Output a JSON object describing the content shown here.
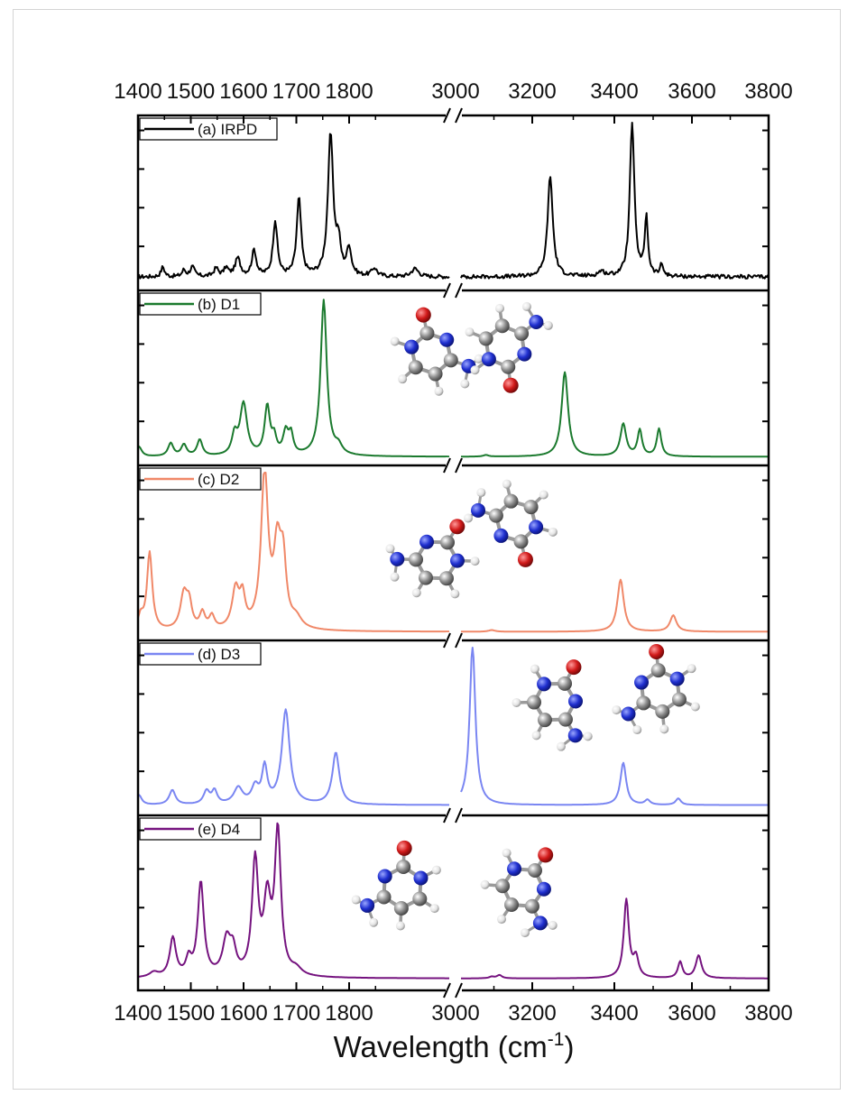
{
  "chart_data": {
    "type": "line",
    "xlabel": "Wavelength (cm",
    "xlabel_sup": "-1",
    "xlabel_close": ")",
    "axis_break": true,
    "x_ranges": [
      [
        1400,
        1990
      ],
      [
        3000,
        3800
      ]
    ],
    "top_ticks": [
      "1400",
      "1500",
      "1600",
      "1700",
      "1800",
      "3000",
      "3200",
      "3400",
      "3600",
      "3800"
    ],
    "bottom_ticks": [
      "1400",
      "1500",
      "1600",
      "1700",
      "1800",
      "3000",
      "3200",
      "3400",
      "3600",
      "3800"
    ],
    "y_ticks_shown": false,
    "panels": [
      {
        "label": "(a) IRPD",
        "color": "#000000",
        "baseline": 0.05,
        "noise": 0.012,
        "peaks": [
          [
            1447,
            0.06,
            4
          ],
          [
            1487,
            0.04,
            4
          ],
          [
            1503,
            0.06,
            5
          ],
          [
            1548,
            0.05,
            5
          ],
          [
            1567,
            0.05,
            5
          ],
          [
            1589,
            0.11,
            6
          ],
          [
            1620,
            0.16,
            5
          ],
          [
            1660,
            0.34,
            5
          ],
          [
            1705,
            0.48,
            5
          ],
          [
            1765,
            0.87,
            6
          ],
          [
            1780,
            0.18,
            5
          ],
          [
            1800,
            0.17,
            5
          ],
          [
            1848,
            0.05,
            6
          ],
          [
            1925,
            0.05,
            8
          ],
          [
            3232,
            0.62,
            8
          ],
          [
            3445,
            0.95,
            7
          ],
          [
            3482,
            0.36,
            5
          ],
          [
            3522,
            0.07,
            5
          ],
          [
            3365,
            0.03,
            10
          ]
        ]
      },
      {
        "label": "(b) D1",
        "color": "#1b7a2e",
        "baseline": 0.02,
        "noise": 0,
        "peaks": [
          [
            1402,
            0.06,
            6
          ],
          [
            1462,
            0.08,
            6
          ],
          [
            1487,
            0.07,
            6
          ],
          [
            1517,
            0.1,
            6
          ],
          [
            1583,
            0.12,
            6
          ],
          [
            1600,
            0.32,
            8
          ],
          [
            1645,
            0.3,
            6
          ],
          [
            1658,
            0.1,
            5
          ],
          [
            1680,
            0.14,
            6
          ],
          [
            1690,
            0.12,
            5
          ],
          [
            1752,
            0.96,
            7
          ],
          [
            1780,
            0.05,
            8
          ],
          [
            3270,
            0.52,
            10
          ],
          [
            3422,
            0.2,
            9
          ],
          [
            3465,
            0.16,
            7
          ],
          [
            3515,
            0.17,
            7
          ],
          [
            3065,
            0.01,
            8
          ]
        ]
      },
      {
        "label": "(c) D2",
        "color": "#f08868",
        "baseline": 0.02,
        "noise": 0,
        "peaks": [
          [
            1405,
            0.08,
            6
          ],
          [
            1422,
            0.48,
            6
          ],
          [
            1487,
            0.22,
            8
          ],
          [
            1497,
            0.14,
            6
          ],
          [
            1522,
            0.1,
            6
          ],
          [
            1540,
            0.08,
            6
          ],
          [
            1585,
            0.24,
            8
          ],
          [
            1598,
            0.18,
            6
          ],
          [
            1640,
            0.96,
            8
          ],
          [
            1664,
            0.46,
            8
          ],
          [
            1675,
            0.38,
            7
          ],
          [
            1700,
            0.06,
            12
          ],
          [
            3415,
            0.32,
            10
          ],
          [
            3552,
            0.1,
            10
          ],
          [
            3080,
            0.01,
            10
          ]
        ]
      },
      {
        "label": "(d) D3",
        "color": "#7a86f2",
        "baseline": 0.03,
        "noise": 0,
        "peaks": [
          [
            1402,
            0.06,
            6
          ],
          [
            1465,
            0.09,
            7
          ],
          [
            1530,
            0.08,
            7
          ],
          [
            1545,
            0.08,
            6
          ],
          [
            1590,
            0.1,
            10
          ],
          [
            1622,
            0.1,
            8
          ],
          [
            1640,
            0.22,
            6
          ],
          [
            1680,
            0.58,
            9
          ],
          [
            1775,
            0.32,
            8
          ],
          [
            3030,
            0.98,
            9
          ],
          [
            3422,
            0.26,
            9
          ],
          [
            3485,
            0.03,
            8
          ],
          [
            3565,
            0.04,
            8
          ]
        ]
      },
      {
        "label": "(e) D4",
        "color": "#75137f",
        "baseline": 0.04,
        "noise": 0,
        "peaks": [
          [
            1430,
            0.03,
            10
          ],
          [
            1466,
            0.24,
            7
          ],
          [
            1496,
            0.1,
            6
          ],
          [
            1519,
            0.58,
            7
          ],
          [
            1568,
            0.22,
            9
          ],
          [
            1580,
            0.14,
            7
          ],
          [
            1622,
            0.7,
            7
          ],
          [
            1645,
            0.44,
            8
          ],
          [
            1665,
            0.88,
            7
          ],
          [
            1700,
            0.04,
            12
          ],
          [
            3080,
            0.01,
            8
          ],
          [
            3100,
            0.02,
            8
          ],
          [
            3430,
            0.48,
            8
          ],
          [
            3455,
            0.12,
            8
          ],
          [
            3570,
            0.1,
            7
          ],
          [
            3618,
            0.14,
            9
          ]
        ]
      }
    ]
  },
  "colors": {
    "atom_carbon": "#8c8c8c",
    "atom_nitrogen": "#1f2fcf",
    "atom_oxygen": "#d11a1a",
    "atom_hydrogen": "#eeeeee"
  }
}
